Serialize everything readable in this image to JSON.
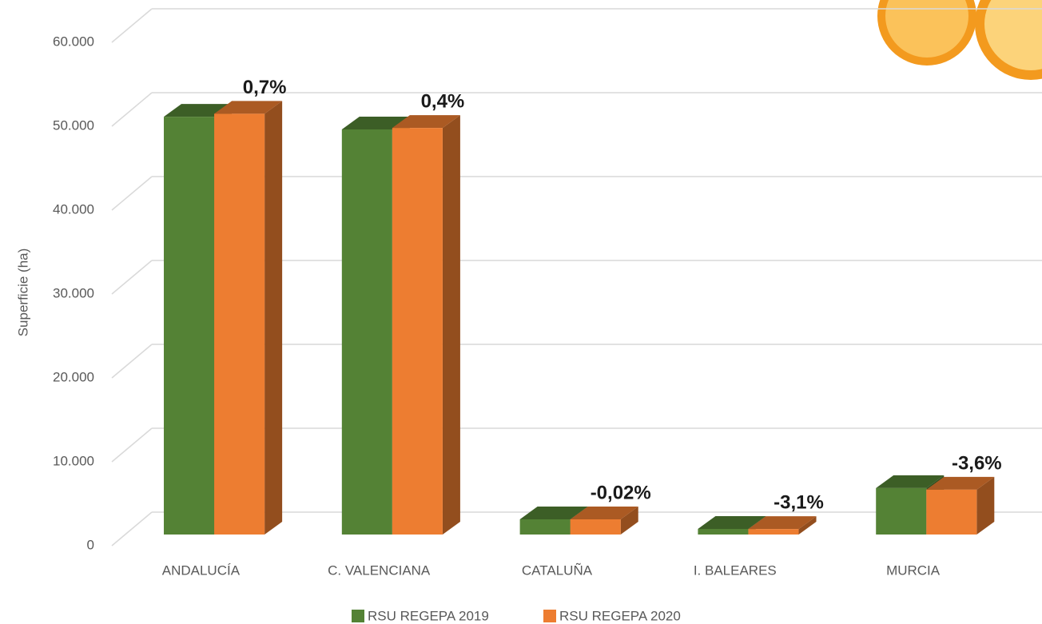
{
  "chart_data": {
    "type": "bar3d",
    "y_label": "Superficie (ha)",
    "categories": [
      "ANDALUCÍA",
      "C. VALENCIANA",
      "CATALUÑA",
      "I. BALEARES",
      "MURCIA"
    ],
    "series": [
      {
        "name": "RSU REGEPA 2019",
        "color": "#548235",
        "values": [
          49800,
          48280,
          1810,
          670,
          5530
        ]
      },
      {
        "name": "RSU REGEPA 2020",
        "color": "#ed7d31",
        "values": [
          50150,
          48470,
          1810,
          650,
          5340
        ]
      }
    ],
    "annotations": [
      "0,7%",
      "0,4%",
      "-0,02%",
      "-3,1%",
      "-3,6%"
    ],
    "ylim": [
      0,
      60000
    ],
    "yticks": [
      0,
      {
        "value": 10000,
        "label": "10.000"
      },
      {
        "value": 20000,
        "label": "20.000"
      },
      {
        "value": 30000,
        "label": "30.000"
      },
      {
        "value": 40000,
        "label": "40.000"
      },
      {
        "value": 50000,
        "label": "50.000"
      },
      {
        "value": 60000,
        "label": "60.000"
      }
    ],
    "grid": true
  }
}
